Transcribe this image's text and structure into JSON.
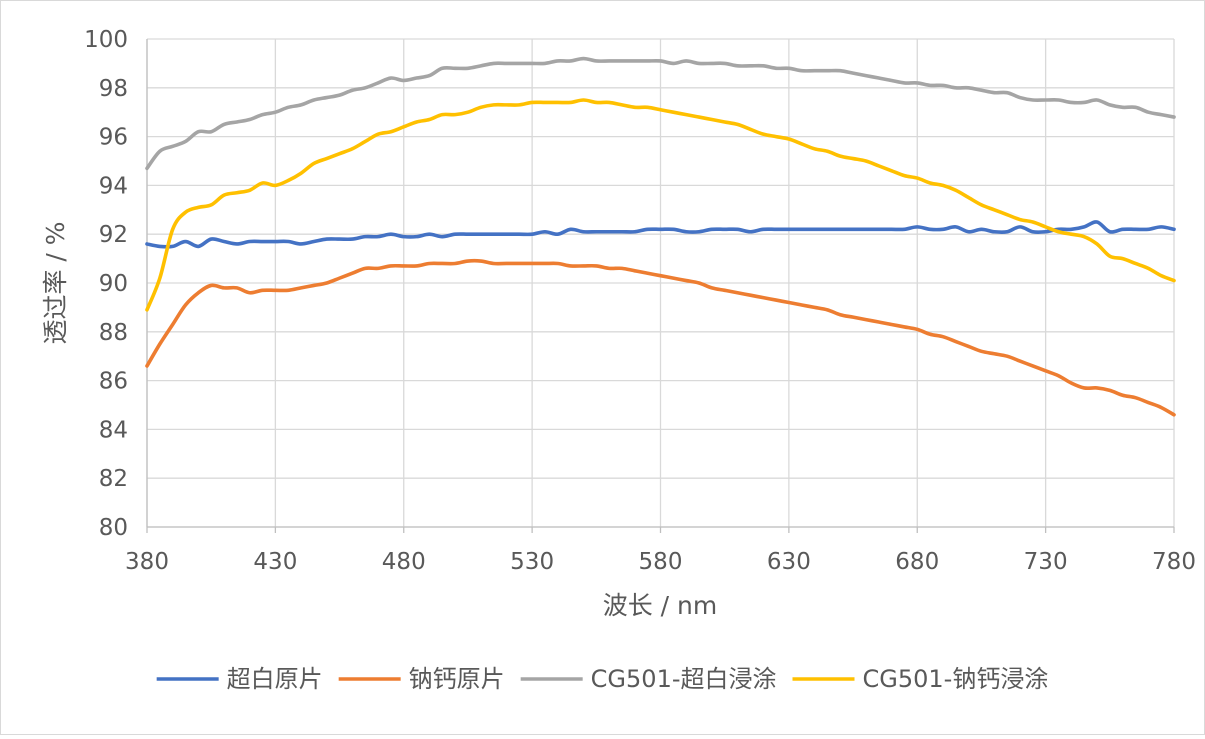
{
  "chart_data": {
    "type": "line",
    "title": "",
    "xlabel": "波长 / nm",
    "ylabel": "透过率 / %",
    "xlim": [
      380,
      780
    ],
    "ylim": [
      80,
      100
    ],
    "x_ticks": [
      380,
      430,
      480,
      530,
      580,
      630,
      680,
      730,
      780
    ],
    "y_ticks": [
      80,
      82,
      84,
      86,
      88,
      90,
      92,
      94,
      96,
      98,
      100
    ],
    "grid": "horizontal",
    "legend_position": "bottom",
    "x": [
      380,
      385,
      390,
      395,
      400,
      405,
      410,
      415,
      420,
      425,
      430,
      435,
      440,
      445,
      450,
      455,
      460,
      465,
      470,
      475,
      480,
      485,
      490,
      495,
      500,
      505,
      510,
      515,
      520,
      525,
      530,
      535,
      540,
      545,
      550,
      555,
      560,
      565,
      570,
      575,
      580,
      585,
      590,
      595,
      600,
      605,
      610,
      615,
      620,
      625,
      630,
      635,
      640,
      645,
      650,
      655,
      660,
      665,
      670,
      675,
      680,
      685,
      690,
      695,
      700,
      705,
      710,
      715,
      720,
      725,
      730,
      735,
      740,
      745,
      750,
      755,
      760,
      765,
      770,
      775,
      780
    ],
    "series": [
      {
        "name": "超白原片",
        "color": "#4472c4",
        "values": [
          91.6,
          91.5,
          91.5,
          91.7,
          91.5,
          91.8,
          91.7,
          91.6,
          91.7,
          91.7,
          91.7,
          91.7,
          91.6,
          91.7,
          91.8,
          91.8,
          91.8,
          91.9,
          91.9,
          92.0,
          91.9,
          91.9,
          92.0,
          91.9,
          92.0,
          92.0,
          92.0,
          92.0,
          92.0,
          92.0,
          92.0,
          92.1,
          92.0,
          92.2,
          92.1,
          92.1,
          92.1,
          92.1,
          92.1,
          92.2,
          92.2,
          92.2,
          92.1,
          92.1,
          92.2,
          92.2,
          92.2,
          92.1,
          92.2,
          92.2,
          92.2,
          92.2,
          92.2,
          92.2,
          92.2,
          92.2,
          92.2,
          92.2,
          92.2,
          92.2,
          92.3,
          92.2,
          92.2,
          92.3,
          92.1,
          92.2,
          92.1,
          92.1,
          92.3,
          92.1,
          92.1,
          92.2,
          92.2,
          92.3,
          92.5,
          92.1,
          92.2,
          92.2,
          92.2,
          92.3,
          92.2
        ]
      },
      {
        "name": "钠钙原片",
        "color": "#ed7d31",
        "values": [
          86.6,
          87.5,
          88.3,
          89.1,
          89.6,
          89.9,
          89.8,
          89.8,
          89.6,
          89.7,
          89.7,
          89.7,
          89.8,
          89.9,
          90.0,
          90.2,
          90.4,
          90.6,
          90.6,
          90.7,
          90.7,
          90.7,
          90.8,
          90.8,
          90.8,
          90.9,
          90.9,
          90.8,
          90.8,
          90.8,
          90.8,
          90.8,
          90.8,
          90.7,
          90.7,
          90.7,
          90.6,
          90.6,
          90.5,
          90.4,
          90.3,
          90.2,
          90.1,
          90.0,
          89.8,
          89.7,
          89.6,
          89.5,
          89.4,
          89.3,
          89.2,
          89.1,
          89.0,
          88.9,
          88.7,
          88.6,
          88.5,
          88.4,
          88.3,
          88.2,
          88.1,
          87.9,
          87.8,
          87.6,
          87.4,
          87.2,
          87.1,
          87.0,
          86.8,
          86.6,
          86.4,
          86.2,
          85.9,
          85.7,
          85.7,
          85.6,
          85.4,
          85.3,
          85.1,
          84.9,
          84.6
        ]
      },
      {
        "name": "CG501-超白浸涂",
        "color": "#a5a5a5",
        "values": [
          94.7,
          95.4,
          95.6,
          95.8,
          96.2,
          96.2,
          96.5,
          96.6,
          96.7,
          96.9,
          97.0,
          97.2,
          97.3,
          97.5,
          97.6,
          97.7,
          97.9,
          98.0,
          98.2,
          98.4,
          98.3,
          98.4,
          98.5,
          98.8,
          98.8,
          98.8,
          98.9,
          99.0,
          99.0,
          99.0,
          99.0,
          99.0,
          99.1,
          99.1,
          99.2,
          99.1,
          99.1,
          99.1,
          99.1,
          99.1,
          99.1,
          99.0,
          99.1,
          99.0,
          99.0,
          99.0,
          98.9,
          98.9,
          98.9,
          98.8,
          98.8,
          98.7,
          98.7,
          98.7,
          98.7,
          98.6,
          98.5,
          98.4,
          98.3,
          98.2,
          98.2,
          98.1,
          98.1,
          98.0,
          98.0,
          97.9,
          97.8,
          97.8,
          97.6,
          97.5,
          97.5,
          97.5,
          97.4,
          97.4,
          97.5,
          97.3,
          97.2,
          97.2,
          97.0,
          96.9,
          96.8
        ]
      },
      {
        "name": "CG501-钠钙浸涂",
        "color": "#ffc000",
        "values": [
          88.9,
          90.2,
          92.2,
          92.9,
          93.1,
          93.2,
          93.6,
          93.7,
          93.8,
          94.1,
          94.0,
          94.2,
          94.5,
          94.9,
          95.1,
          95.3,
          95.5,
          95.8,
          96.1,
          96.2,
          96.4,
          96.6,
          96.7,
          96.9,
          96.9,
          97.0,
          97.2,
          97.3,
          97.3,
          97.3,
          97.4,
          97.4,
          97.4,
          97.4,
          97.5,
          97.4,
          97.4,
          97.3,
          97.2,
          97.2,
          97.1,
          97.0,
          96.9,
          96.8,
          96.7,
          96.6,
          96.5,
          96.3,
          96.1,
          96.0,
          95.9,
          95.7,
          95.5,
          95.4,
          95.2,
          95.1,
          95.0,
          94.8,
          94.6,
          94.4,
          94.3,
          94.1,
          94.0,
          93.8,
          93.5,
          93.2,
          93.0,
          92.8,
          92.6,
          92.5,
          92.3,
          92.1,
          92.0,
          91.9,
          91.6,
          91.1,
          91.0,
          90.8,
          90.6,
          90.3,
          90.1
        ]
      }
    ]
  }
}
